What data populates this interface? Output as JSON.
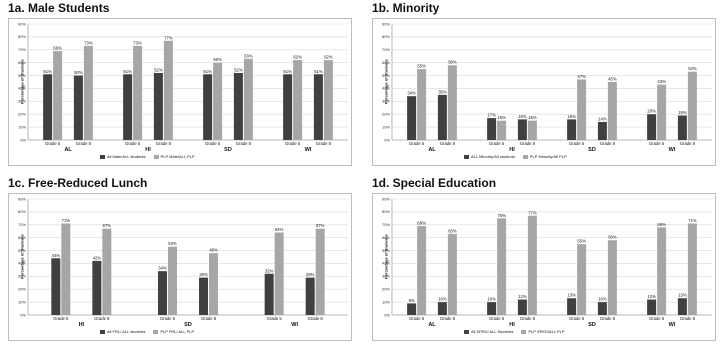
{
  "colors": {
    "series1": "#404040",
    "series2": "#a6a6a6",
    "grid": "#d9d9d9"
  },
  "chart_data": [
    {
      "type": "bar",
      "title": "1a. Male Students",
      "ylabel": "Percentage of Students",
      "ylim": [
        0,
        90
      ],
      "yticks": [
        "0%",
        "10%",
        "20%",
        "30%",
        "40%",
        "50%",
        "60%",
        "70%",
        "80%",
        "90%"
      ],
      "groups": [
        "AL",
        "HI",
        "SD",
        "WI"
      ],
      "categories": [
        "Grade 5",
        "Grade 8",
        "Grade 5",
        "Grade 8",
        "Grade 5",
        "Grade 8",
        "Grade 5",
        "Grade 8"
      ],
      "series": [
        {
          "name": "All Male/ALL students",
          "values": [
            51,
            50,
            51,
            52,
            51,
            52,
            51,
            51
          ],
          "labels": [
            "51%",
            "50%",
            "51%",
            "52%",
            "51%",
            "52%",
            "51%",
            "51%"
          ]
        },
        {
          "name": "PLP Male/ALL PLP",
          "values": [
            69,
            73,
            73,
            77,
            60,
            63,
            62,
            62
          ],
          "labels": [
            "69%",
            "73%",
            "73%",
            "77%",
            "60%",
            "63%",
            "62%",
            "62%"
          ]
        }
      ]
    },
    {
      "type": "bar",
      "title": "1b. Minority",
      "ylabel": "Percentage of Students",
      "ylim": [
        0,
        90
      ],
      "yticks": [
        "0%",
        "10%",
        "20%",
        "30%",
        "40%",
        "50%",
        "60%",
        "70%",
        "80%",
        "90%"
      ],
      "groups": [
        "AL",
        "HI",
        "SD",
        "WI"
      ],
      "categories": [
        "Grade 5",
        "Grade 8",
        "Grade 5",
        "Grade 8",
        "Grade 5",
        "Grade 8",
        "Grade 5",
        "Grade 8"
      ],
      "series": [
        {
          "name": "ALL Minority/All students",
          "values": [
            34,
            35,
            17,
            16,
            16,
            14,
            20,
            19
          ],
          "labels": [
            "34%",
            "35%",
            "17%",
            "16%",
            "16%",
            "14%",
            "20%",
            "19%"
          ]
        },
        {
          "name": "PLP Minority/All PLP",
          "values": [
            55,
            58,
            15,
            15,
            47,
            45,
            43,
            53
          ],
          "labels": [
            "55%",
            "58%",
            "15%",
            "15%",
            "47%",
            "45%",
            "43%",
            "53%"
          ]
        }
      ]
    },
    {
      "type": "bar",
      "title": "1c. Free-Reduced Lunch",
      "ylabel": "Percentage of Students",
      "ylim": [
        0,
        90
      ],
      "yticks": [
        "0%",
        "10%",
        "20%",
        "30%",
        "40%",
        "50%",
        "60%",
        "70%",
        "80%",
        "90%"
      ],
      "groups": [
        "HI",
        "SD",
        "WI"
      ],
      "categories": [
        "Grade 5",
        "Grade 8",
        "Grade 5",
        "Grade 8",
        "Grade 5",
        "Grade 8"
      ],
      "series": [
        {
          "name": "All FRL/ ALL students",
          "values": [
            44,
            42,
            34,
            29,
            32,
            29
          ],
          "labels": [
            "44%",
            "42%",
            "34%",
            "29%",
            "32%",
            "29%"
          ]
        },
        {
          "name": "PLP FRL/ ALL PLP",
          "values": [
            71,
            67,
            53,
            48,
            64,
            67
          ],
          "labels": [
            "71%",
            "67%",
            "53%",
            "48%",
            "64%",
            "67%"
          ]
        }
      ]
    },
    {
      "type": "bar",
      "title": "1d. Special Education",
      "ylabel": "Percentage of Students",
      "ylim": [
        0,
        90
      ],
      "yticks": [
        "0%",
        "10%",
        "20%",
        "30%",
        "40%",
        "50%",
        "60%",
        "70%",
        "80%",
        "90%"
      ],
      "groups": [
        "AL",
        "HI",
        "SD",
        "WI"
      ],
      "categories": [
        "Grade 5",
        "Grade 8",
        "Grade 5",
        "Grade 8",
        "Grade 5",
        "Grade 8",
        "Grade 5",
        "Grade 8"
      ],
      "series": [
        {
          "name": "All SPED/ ALL Students",
          "values": [
            9,
            10,
            10,
            12,
            13,
            10,
            12,
            13
          ],
          "labels": [
            "9%",
            "10%",
            "10%",
            "12%",
            "13%",
            "10%",
            "12%",
            "13%"
          ]
        },
        {
          "name": "PLP SPED/ALL PLP",
          "values": [
            69,
            63,
            75,
            77,
            55,
            58,
            68,
            71
          ],
          "labels": [
            "69%",
            "63%",
            "75%",
            "77%",
            "55%",
            "58%",
            "68%",
            "71%"
          ]
        }
      ]
    }
  ]
}
